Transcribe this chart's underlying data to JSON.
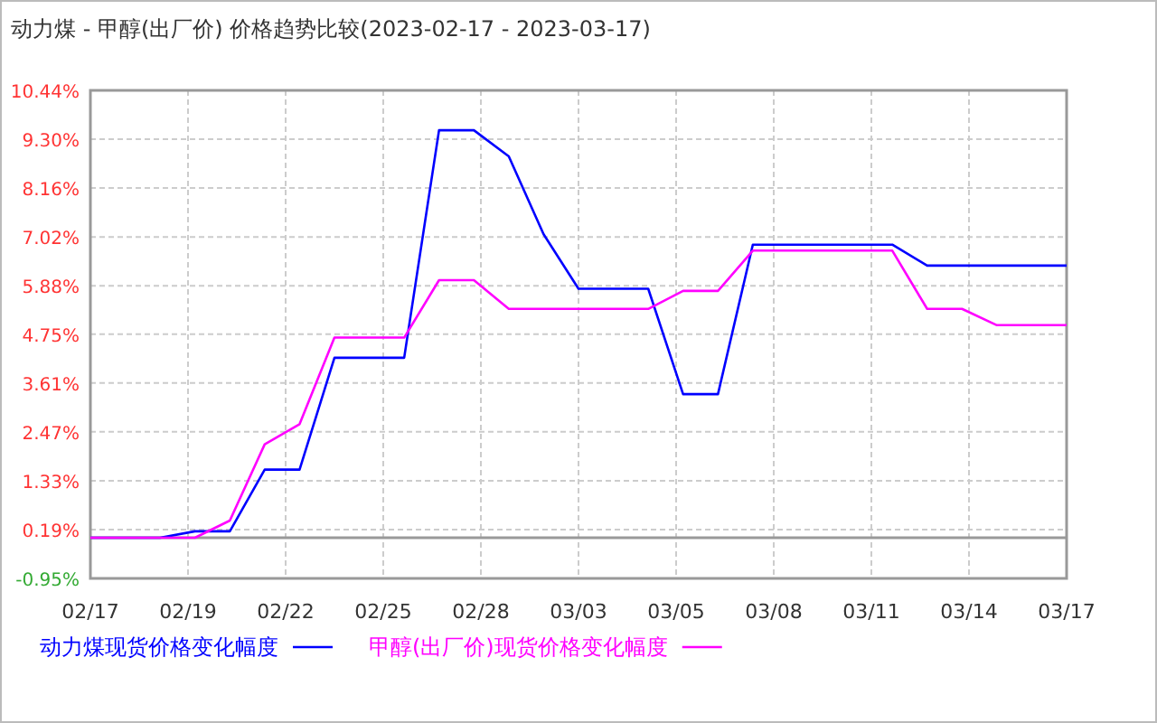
{
  "chart_data": {
    "type": "line",
    "title": "动力煤 - 甲醇(出厂价) 价格趋势比较(2023-02-17 - 2023-03-17)",
    "x": [
      "2023-02-17",
      "2023-02-18",
      "2023-02-19",
      "2023-02-20",
      "2023-02-21",
      "2023-02-22",
      "2023-02-23",
      "2023-02-24",
      "2023-02-25",
      "2023-02-26",
      "2023-02-27",
      "2023-02-28",
      "2023-03-01",
      "2023-03-02",
      "2023-03-03",
      "2023-03-04",
      "2023-03-05",
      "2023-03-06",
      "2023-03-07",
      "2023-03-08",
      "2023-03-09",
      "2023-03-10",
      "2023-03-11",
      "2023-03-12",
      "2023-03-13",
      "2023-03-14",
      "2023-03-15",
      "2023-03-16",
      "2023-03-17"
    ],
    "series": [
      {
        "name": "动力煤现货价格变化幅度",
        "color": "#0000ff",
        "values": [
          0,
          0,
          0,
          0.15,
          0.15,
          1.59,
          1.59,
          4.2,
          4.2,
          4.2,
          9.51,
          9.51,
          8.9,
          7.08,
          5.81,
          5.81,
          5.81,
          3.35,
          3.35,
          6.84,
          6.84,
          6.84,
          6.84,
          6.84,
          6.35,
          6.35,
          6.35,
          6.35,
          6.35
        ]
      },
      {
        "name": "甲醇(出厂价)现货价格变化幅度",
        "color": "#ff00ff",
        "values": [
          0,
          0,
          0,
          0,
          0.4,
          2.18,
          2.65,
          4.67,
          4.67,
          4.67,
          6.01,
          6.01,
          5.34,
          5.34,
          5.34,
          5.34,
          5.34,
          5.76,
          5.76,
          6.7,
          6.7,
          6.7,
          6.7,
          6.7,
          5.34,
          5.34,
          4.96,
          4.96,
          4.96
        ]
      }
    ],
    "xlim": [
      "2023-02-17",
      "2023-03-17"
    ],
    "xticks": [
      {
        "value": "2023-02-17",
        "label": "02/17"
      },
      {
        "value": "2023-02-19T19:12",
        "label": "02/19"
      },
      {
        "value": "2023-02-22T14:24",
        "label": "02/22"
      },
      {
        "value": "2023-02-25T09:36",
        "label": "02/25"
      },
      {
        "value": "2023-02-28T04:48",
        "label": "02/28"
      },
      {
        "value": "2023-03-03",
        "label": "03/03"
      },
      {
        "value": "2023-03-05T19:12",
        "label": "03/05"
      },
      {
        "value": "2023-03-08T14:24",
        "label": "03/08"
      },
      {
        "value": "2023-03-11T09:36",
        "label": "03/11"
      },
      {
        "value": "2023-03-14T04:48",
        "label": "03/14"
      },
      {
        "value": "2023-03-17",
        "label": "03/17"
      }
    ],
    "ylim": [
      -0.95,
      10.44
    ],
    "yticks": [
      {
        "value": -0.95,
        "label": "-0.95%"
      },
      {
        "value": 0.19,
        "label": "0.19%"
      },
      {
        "value": 1.33,
        "label": "1.33%"
      },
      {
        "value": 2.47,
        "label": "2.47%"
      },
      {
        "value": 3.61,
        "label": "3.61%"
      },
      {
        "value": 4.75,
        "label": "4.75%"
      },
      {
        "value": 5.88,
        "label": "5.88%"
      },
      {
        "value": 7.02,
        "label": "7.02%"
      },
      {
        "value": 8.16,
        "label": "8.16%"
      },
      {
        "value": 9.3,
        "label": "9.30%"
      },
      {
        "value": 10.44,
        "label": "10.44%"
      }
    ],
    "ref_lines": [
      {
        "axis": "y",
        "value": 0,
        "color": "#999999"
      }
    ],
    "grid": true,
    "legend": "bottom",
    "line_style": "solid",
    "marker": "none"
  }
}
